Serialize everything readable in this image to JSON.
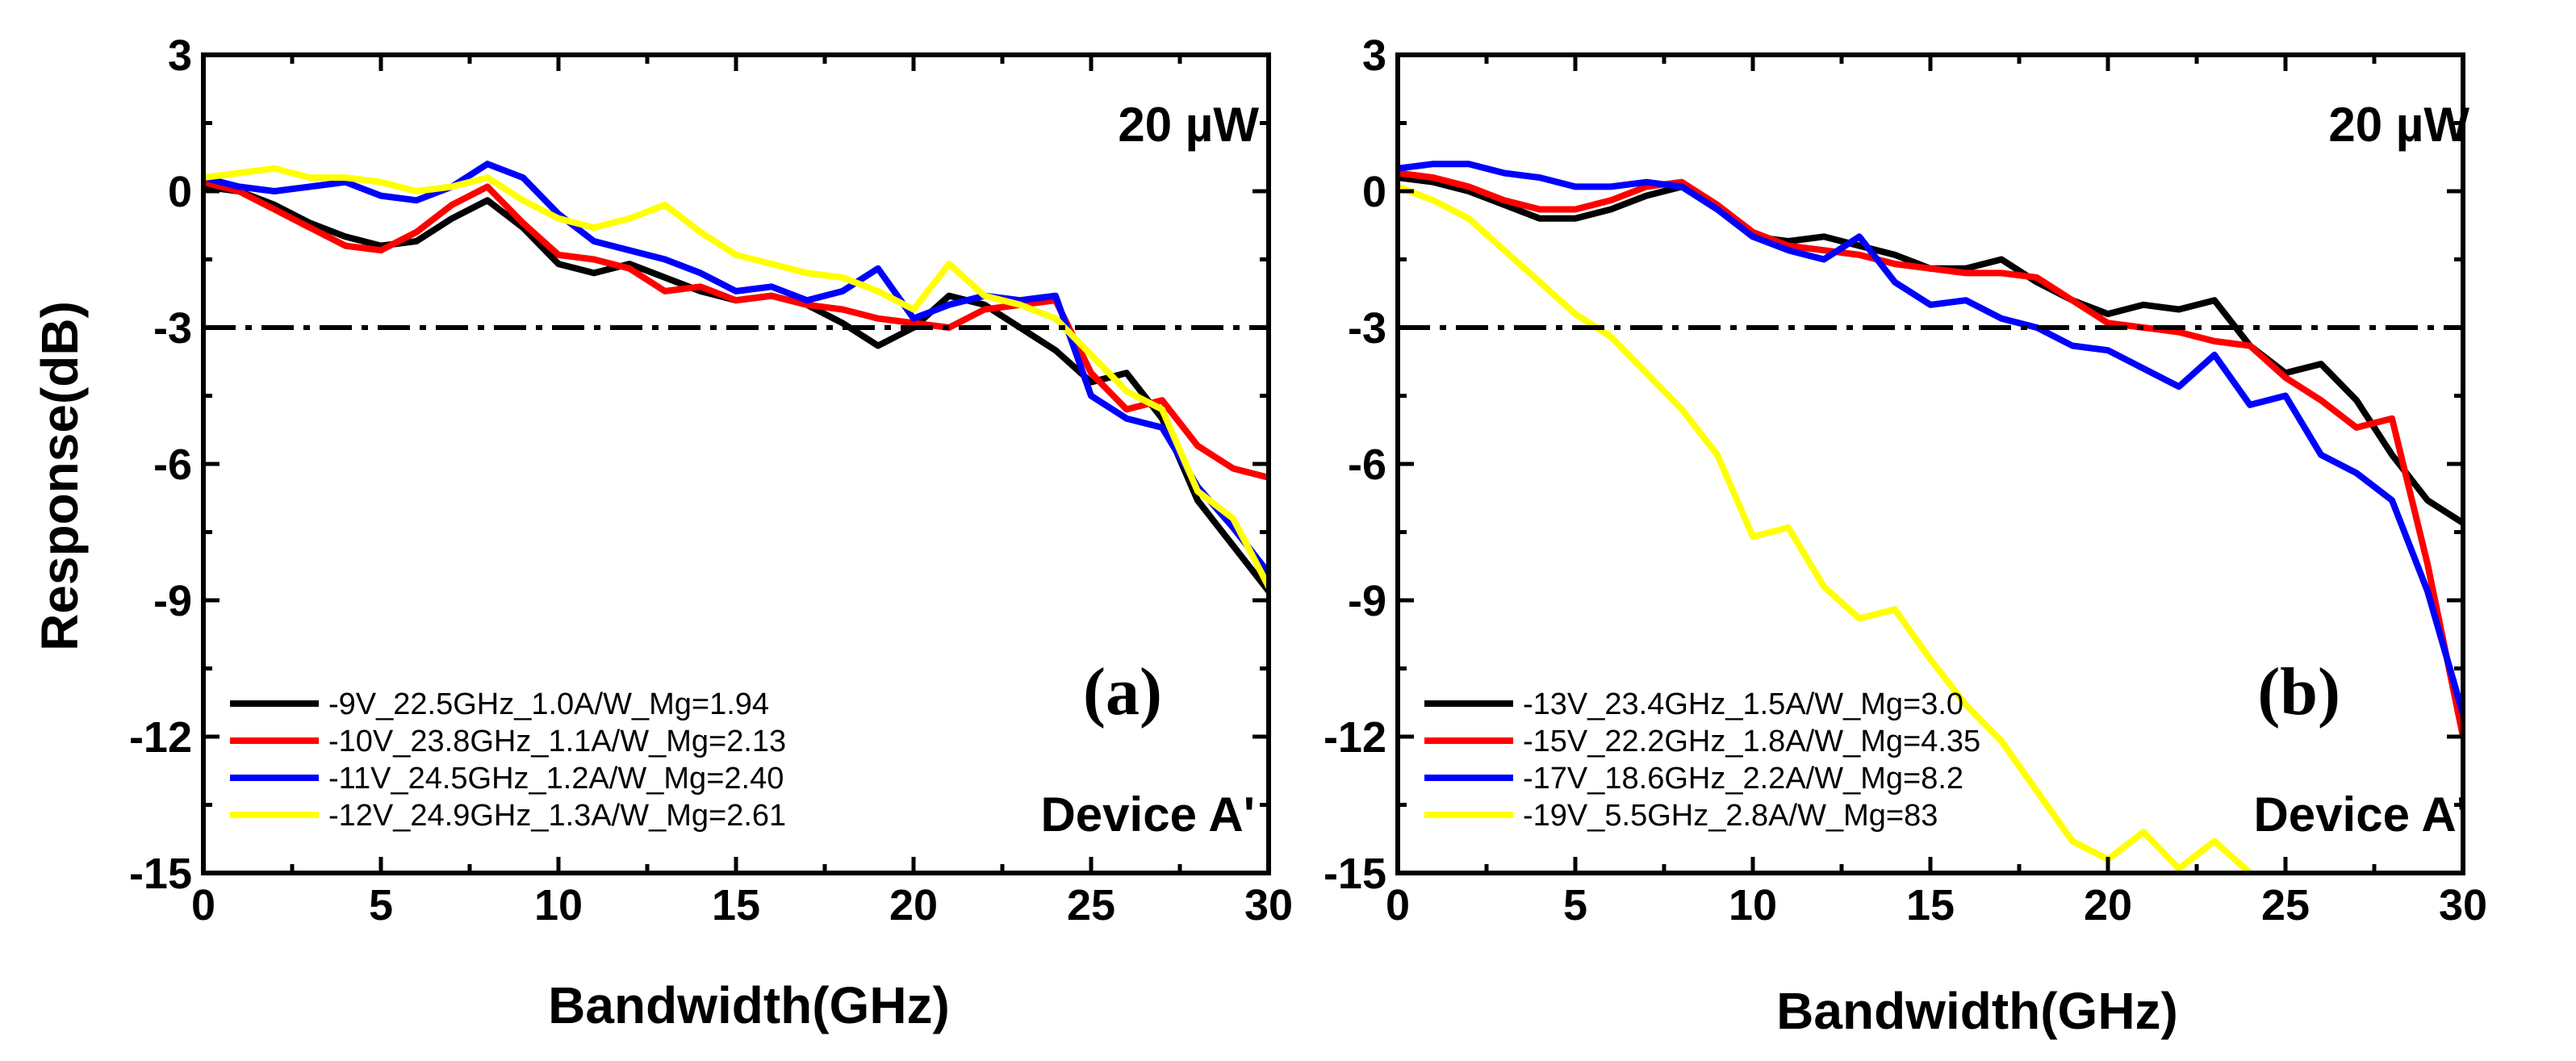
{
  "chart_data": [
    {
      "type": "line",
      "panel_label": "(a)",
      "power_label": "20 µW",
      "device_label": "Device A'",
      "xlabel": "Bandwidth(GHz)",
      "ylabel": "Response(dB)",
      "xlim": [
        0,
        30
      ],
      "ylim": [
        -15,
        3
      ],
      "xticks": [
        "0",
        "5",
        "10",
        "15",
        "20",
        "25",
        "30"
      ],
      "yticks": [
        "3",
        "0",
        "-3",
        "-6",
        "-9",
        "-12",
        "-15"
      ],
      "reference_line": {
        "y": -3,
        "style": "dash-dot"
      },
      "legend_placement": "bottom-left",
      "series": [
        {
          "name": "-9V_22.5GHz_1.0A/W_Mg=1.94",
          "color": "#000000",
          "x": [
            0,
            1,
            2,
            3,
            4,
            5,
            6,
            7,
            8,
            9,
            10,
            11,
            12,
            13,
            14,
            15,
            16,
            17,
            18,
            19,
            20,
            21,
            22,
            23,
            24,
            25,
            26,
            27,
            28,
            29,
            30
          ],
          "y": [
            0.1,
            0.0,
            -0.3,
            -0.7,
            -1.0,
            -1.2,
            -1.1,
            -0.6,
            -0.2,
            -0.8,
            -1.6,
            -1.8,
            -1.6,
            -1.9,
            -2.2,
            -2.4,
            -2.3,
            -2.5,
            -2.9,
            -3.4,
            -3.0,
            -2.3,
            -2.5,
            -3.0,
            -3.5,
            -4.2,
            -4.0,
            -5.0,
            -6.8,
            -7.8,
            -8.8
          ]
        },
        {
          "name": "-10V_23.8GHz_1.1A/W_Mg=2.13",
          "color": "#ff0000",
          "x": [
            0,
            1,
            2,
            3,
            4,
            5,
            6,
            7,
            8,
            9,
            10,
            11,
            12,
            13,
            14,
            15,
            16,
            17,
            18,
            19,
            20,
            21,
            22,
            23,
            24,
            25,
            26,
            27,
            28,
            29,
            30
          ],
          "y": [
            0.2,
            0.0,
            -0.4,
            -0.8,
            -1.2,
            -1.3,
            -0.9,
            -0.3,
            0.1,
            -0.7,
            -1.4,
            -1.5,
            -1.7,
            -2.2,
            -2.1,
            -2.4,
            -2.3,
            -2.5,
            -2.6,
            -2.8,
            -2.9,
            -3.0,
            -2.6,
            -2.5,
            -2.4,
            -4.0,
            -4.8,
            -4.6,
            -5.6,
            -6.1,
            -6.3
          ]
        },
        {
          "name": "-11V_24.5GHz_1.2A/W_Mg=2.40",
          "color": "#0000ff",
          "x": [
            0,
            1,
            2,
            3,
            4,
            5,
            6,
            7,
            8,
            9,
            10,
            11,
            12,
            13,
            14,
            15,
            16,
            17,
            18,
            19,
            20,
            21,
            22,
            23,
            24,
            25,
            26,
            27,
            28,
            29,
            30
          ],
          "y": [
            0.3,
            0.1,
            0.0,
            0.1,
            0.2,
            -0.1,
            -0.2,
            0.1,
            0.6,
            0.3,
            -0.5,
            -1.1,
            -1.3,
            -1.5,
            -1.8,
            -2.2,
            -2.1,
            -2.4,
            -2.2,
            -1.7,
            -2.8,
            -2.5,
            -2.3,
            -2.4,
            -2.3,
            -4.5,
            -5.0,
            -5.2,
            -6.5,
            -7.4,
            -8.4
          ]
        },
        {
          "name": "-12V_24.9GHz_1.3A/W_Mg=2.61",
          "color": "#ffff00",
          "x": [
            0,
            1,
            2,
            3,
            4,
            5,
            6,
            7,
            8,
            9,
            10,
            11,
            12,
            13,
            14,
            15,
            16,
            17,
            18,
            19,
            20,
            21,
            22,
            23,
            24,
            25,
            26,
            27,
            28,
            29,
            30
          ],
          "y": [
            0.3,
            0.4,
            0.5,
            0.3,
            0.3,
            0.2,
            0.0,
            0.1,
            0.3,
            -0.2,
            -0.6,
            -0.8,
            -0.6,
            -0.3,
            -0.9,
            -1.4,
            -1.6,
            -1.8,
            -1.9,
            -2.2,
            -2.6,
            -1.6,
            -2.3,
            -2.5,
            -2.8,
            -3.6,
            -4.4,
            -4.8,
            -6.6,
            -7.2,
            -8.7
          ]
        }
      ]
    },
    {
      "type": "line",
      "panel_label": "(b)",
      "power_label": "20 µW",
      "device_label": "Device A'",
      "xlabel": "Bandwidth(GHz)",
      "ylabel": "",
      "xlim": [
        0,
        30
      ],
      "ylim": [
        -15,
        3
      ],
      "xticks": [
        "0",
        "5",
        "10",
        "15",
        "20",
        "25",
        "30"
      ],
      "yticks": [
        "3",
        "0",
        "-3",
        "-6",
        "-9",
        "-12",
        "-15"
      ],
      "reference_line": {
        "y": -3,
        "style": "dash-dot"
      },
      "legend_placement": "bottom-left",
      "series": [
        {
          "name": "-13V_23.4GHz_1.5A/W_Mg=3.0",
          "color": "#000000",
          "x": [
            0,
            1,
            2,
            3,
            4,
            5,
            6,
            7,
            8,
            9,
            10,
            11,
            12,
            13,
            14,
            15,
            16,
            17,
            18,
            19,
            20,
            21,
            22,
            23,
            24,
            25,
            26,
            27,
            28,
            29,
            30
          ],
          "y": [
            0.3,
            0.2,
            0.0,
            -0.3,
            -0.6,
            -0.6,
            -0.4,
            -0.1,
            0.1,
            -0.4,
            -1.0,
            -1.1,
            -1.0,
            -1.2,
            -1.4,
            -1.7,
            -1.7,
            -1.5,
            -2.0,
            -2.4,
            -2.7,
            -2.5,
            -2.6,
            -2.4,
            -3.4,
            -4.0,
            -3.8,
            -4.6,
            -5.8,
            -6.8,
            -7.3
          ]
        },
        {
          "name": "-15V_22.2GHz_1.8A/W_Mg=4.35",
          "color": "#ff0000",
          "x": [
            0,
            1,
            2,
            3,
            4,
            5,
            6,
            7,
            8,
            9,
            10,
            11,
            12,
            13,
            14,
            15,
            16,
            17,
            18,
            19,
            20,
            21,
            22,
            23,
            24,
            25,
            26,
            27,
            28,
            29,
            30
          ],
          "y": [
            0.4,
            0.3,
            0.1,
            -0.2,
            -0.4,
            -0.4,
            -0.2,
            0.1,
            0.2,
            -0.3,
            -0.9,
            -1.2,
            -1.3,
            -1.4,
            -1.6,
            -1.7,
            -1.8,
            -1.8,
            -1.9,
            -2.4,
            -2.9,
            -3.0,
            -3.1,
            -3.3,
            -3.4,
            -4.1,
            -4.6,
            -5.2,
            -5.0,
            -8.2,
            -12.0
          ]
        },
        {
          "name": "-17V_18.6GHz_2.2A/W_Mg=8.2",
          "color": "#0000ff",
          "x": [
            0,
            1,
            2,
            3,
            4,
            5,
            6,
            7,
            8,
            9,
            10,
            11,
            12,
            13,
            14,
            15,
            16,
            17,
            18,
            19,
            20,
            21,
            22,
            23,
            24,
            25,
            26,
            27,
            28,
            29,
            30
          ],
          "y": [
            0.5,
            0.6,
            0.6,
            0.4,
            0.3,
            0.1,
            0.1,
            0.2,
            0.1,
            -0.4,
            -1.0,
            -1.3,
            -1.5,
            -1.0,
            -2.0,
            -2.5,
            -2.4,
            -2.8,
            -3.0,
            -3.4,
            -3.5,
            -3.9,
            -4.3,
            -3.6,
            -4.7,
            -4.5,
            -5.8,
            -6.2,
            -6.8,
            -8.8,
            -11.5
          ]
        },
        {
          "name": "-19V_5.5GHz_2.8A/W_Mg=83",
          "color": "#ffff00",
          "x": [
            0,
            1,
            2,
            3,
            4,
            5,
            6,
            7,
            8,
            9,
            10,
            11,
            12,
            13,
            14,
            15,
            16,
            17,
            18,
            19,
            20,
            21,
            22,
            23,
            24
          ],
          "y": [
            0.1,
            -0.2,
            -0.6,
            -1.3,
            -2.0,
            -2.7,
            -3.2,
            -4.0,
            -4.8,
            -5.8,
            -7.6,
            -7.4,
            -8.7,
            -9.4,
            -9.2,
            -10.3,
            -11.3,
            -12.1,
            -13.2,
            -14.3,
            -14.7,
            -14.1,
            -14.9,
            -14.3,
            -15.0
          ]
        }
      ]
    }
  ]
}
